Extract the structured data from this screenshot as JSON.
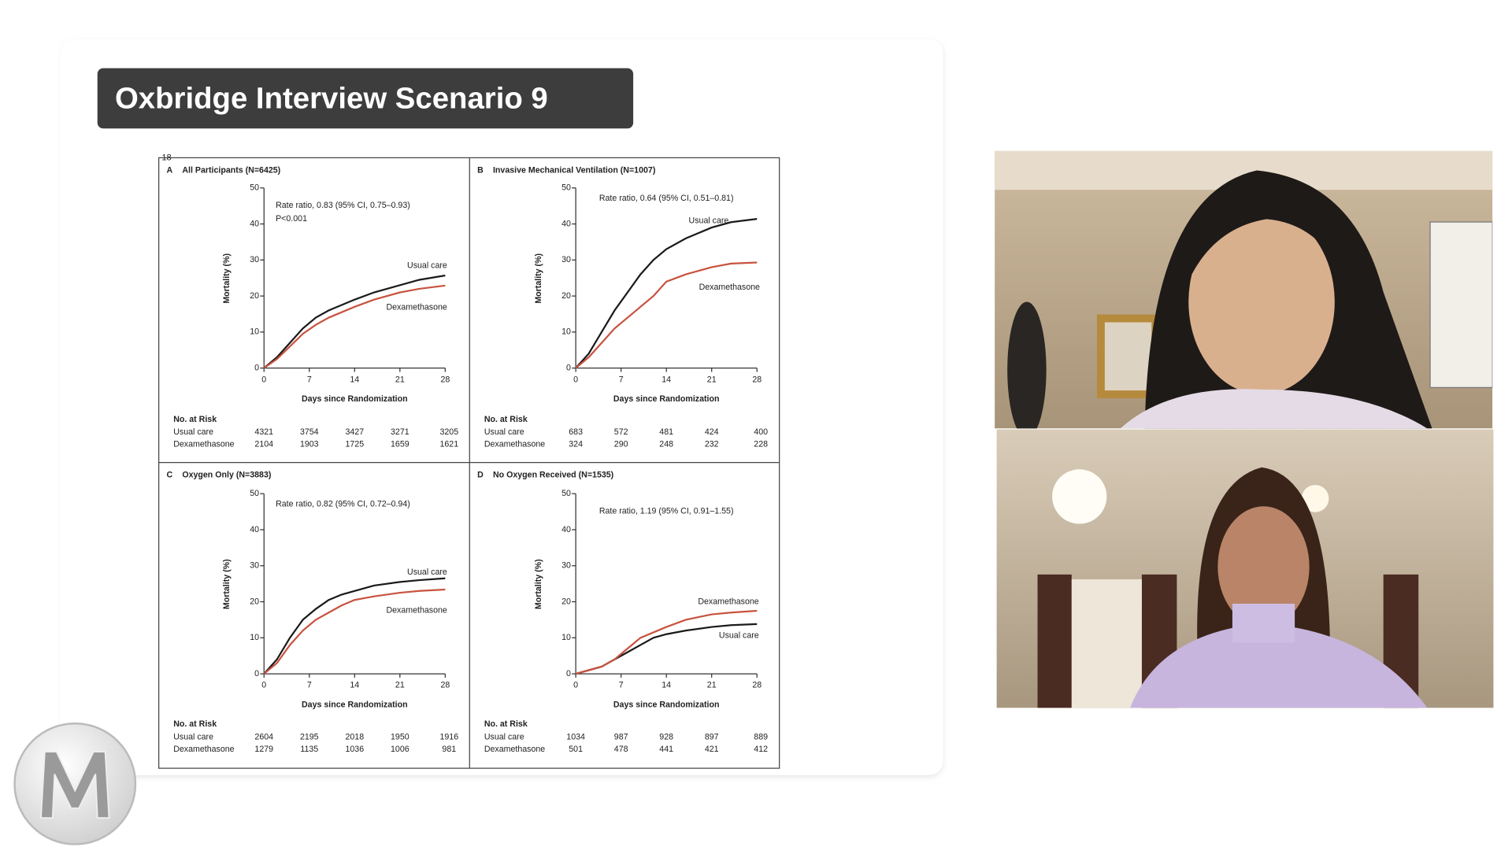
{
  "slide": {
    "title": "Oxbridge Interview Scenario 9",
    "page_number": "18"
  },
  "chart_data": [
    {
      "type": "line",
      "panel": "A",
      "title": "All Participants (N=6425)",
      "x_label": "Days since Randomization",
      "y_label": "Mortality (%)",
      "annotations": [
        "Rate ratio, 0.83 (95% CI, 0.75–0.93)",
        "P<0.001"
      ],
      "x": [
        0,
        2,
        4,
        6,
        8,
        10,
        12,
        14,
        17,
        21,
        24,
        28
      ],
      "series": [
        {
          "name": "Usual care",
          "color": "#1a1a1a",
          "values": [
            0,
            3,
            7,
            11,
            14,
            16,
            17.5,
            19,
            21,
            23,
            24.5,
            25.7
          ]
        },
        {
          "name": "Dexamethasone",
          "color": "#c8533f",
          "values": [
            0,
            2.5,
            6,
            9.5,
            12,
            14,
            15.5,
            17,
            19,
            21,
            22,
            22.9
          ]
        }
      ],
      "xlim": [
        0,
        28
      ],
      "xticks": [
        0,
        7,
        14,
        21,
        28
      ],
      "ylim": [
        0,
        50
      ],
      "yticks": [
        0,
        10,
        20,
        30,
        40,
        50
      ],
      "risk_table": {
        "title": "No. at Risk",
        "rows": [
          {
            "name": "Usual care",
            "values": [
              4321,
              3754,
              3427,
              3271,
              3205
            ]
          },
          {
            "name": "Dexamethasone",
            "values": [
              2104,
              1903,
              1725,
              1659,
              1621
            ]
          }
        ]
      }
    },
    {
      "type": "line",
      "panel": "B",
      "title": "Invasive Mechanical Ventilation (N=1007)",
      "x_label": "Days since Randomization",
      "y_label": "Mortality (%)",
      "annotations": [
        "Rate ratio, 0.64 (95% CI, 0.51–0.81)"
      ],
      "x": [
        0,
        2,
        4,
        6,
        8,
        10,
        12,
        14,
        17,
        21,
        24,
        28
      ],
      "series": [
        {
          "name": "Usual care",
          "color": "#1a1a1a",
          "values": [
            0,
            4,
            10,
            16,
            21,
            26,
            30,
            33,
            36,
            39,
            40.5,
            41.4
          ]
        },
        {
          "name": "Dexamethasone",
          "color": "#c8533f",
          "values": [
            0,
            3,
            7,
            11,
            14,
            17,
            20,
            24,
            26,
            28,
            29,
            29.3
          ]
        }
      ],
      "xlim": [
        0,
        28
      ],
      "xticks": [
        0,
        7,
        14,
        21,
        28
      ],
      "ylim": [
        0,
        50
      ],
      "yticks": [
        0,
        10,
        20,
        30,
        40,
        50
      ],
      "risk_table": {
        "title": "No. at Risk",
        "rows": [
          {
            "name": "Usual care",
            "values": [
              683,
              572,
              481,
              424,
              400
            ]
          },
          {
            "name": "Dexamethasone",
            "values": [
              324,
              290,
              248,
              232,
              228
            ]
          }
        ]
      }
    },
    {
      "type": "line",
      "panel": "C",
      "title": "Oxygen Only (N=3883)",
      "x_label": "Days since Randomization",
      "y_label": "Mortality (%)",
      "annotations": [
        "Rate ratio, 0.82 (95% CI, 0.72–0.94)"
      ],
      "x": [
        0,
        2,
        4,
        6,
        8,
        10,
        12,
        14,
        17,
        21,
        24,
        28
      ],
      "series": [
        {
          "name": "Usual care",
          "color": "#1a1a1a",
          "values": [
            0,
            4,
            10,
            15,
            18,
            20.5,
            22,
            23,
            24.5,
            25.5,
            26,
            26.5
          ]
        },
        {
          "name": "Dexamethasone",
          "color": "#c8533f",
          "values": [
            0,
            3,
            8,
            12,
            15,
            17,
            19,
            20.5,
            21.5,
            22.5,
            23,
            23.4
          ]
        }
      ],
      "xlim": [
        0,
        28
      ],
      "xticks": [
        0,
        7,
        14,
        21,
        28
      ],
      "ylim": [
        0,
        50
      ],
      "yticks": [
        0,
        10,
        20,
        30,
        40,
        50
      ],
      "risk_table": {
        "title": "No. at Risk",
        "rows": [
          {
            "name": "Usual care",
            "values": [
              2604,
              2195,
              2018,
              1950,
              1916
            ]
          },
          {
            "name": "Dexamethasone",
            "values": [
              1279,
              1135,
              1036,
              1006,
              981
            ]
          }
        ]
      }
    },
    {
      "type": "line",
      "panel": "D",
      "title": "No Oxygen Received (N=1535)",
      "x_label": "Days since Randomization",
      "y_label": "Mortality (%)",
      "annotations": [
        "Rate ratio, 1.19 (95% CI, 0.91–1.55)"
      ],
      "x": [
        0,
        2,
        4,
        6,
        8,
        10,
        12,
        14,
        17,
        21,
        24,
        28
      ],
      "series": [
        {
          "name": "Usual care",
          "color": "#1a1a1a",
          "values": [
            0,
            1,
            2,
            4,
            6,
            8,
            10,
            11,
            12,
            13,
            13.5,
            13.8
          ]
        },
        {
          "name": "Dexamethasone",
          "color": "#c8533f",
          "values": [
            0,
            1,
            2,
            4,
            7,
            10,
            11.5,
            13,
            15,
            16.5,
            17,
            17.5
          ]
        }
      ],
      "xlim": [
        0,
        28
      ],
      "xticks": [
        0,
        7,
        14,
        21,
        28
      ],
      "ylim": [
        0,
        50
      ],
      "yticks": [
        0,
        10,
        20,
        30,
        40,
        50
      ],
      "risk_table": {
        "title": "No. at Risk",
        "rows": [
          {
            "name": "Usual care",
            "values": [
              1034,
              987,
              928,
              897,
              889
            ]
          },
          {
            "name": "Dexamethasone",
            "values": [
              501,
              478,
              441,
              421,
              412
            ]
          }
        ]
      }
    }
  ]
}
